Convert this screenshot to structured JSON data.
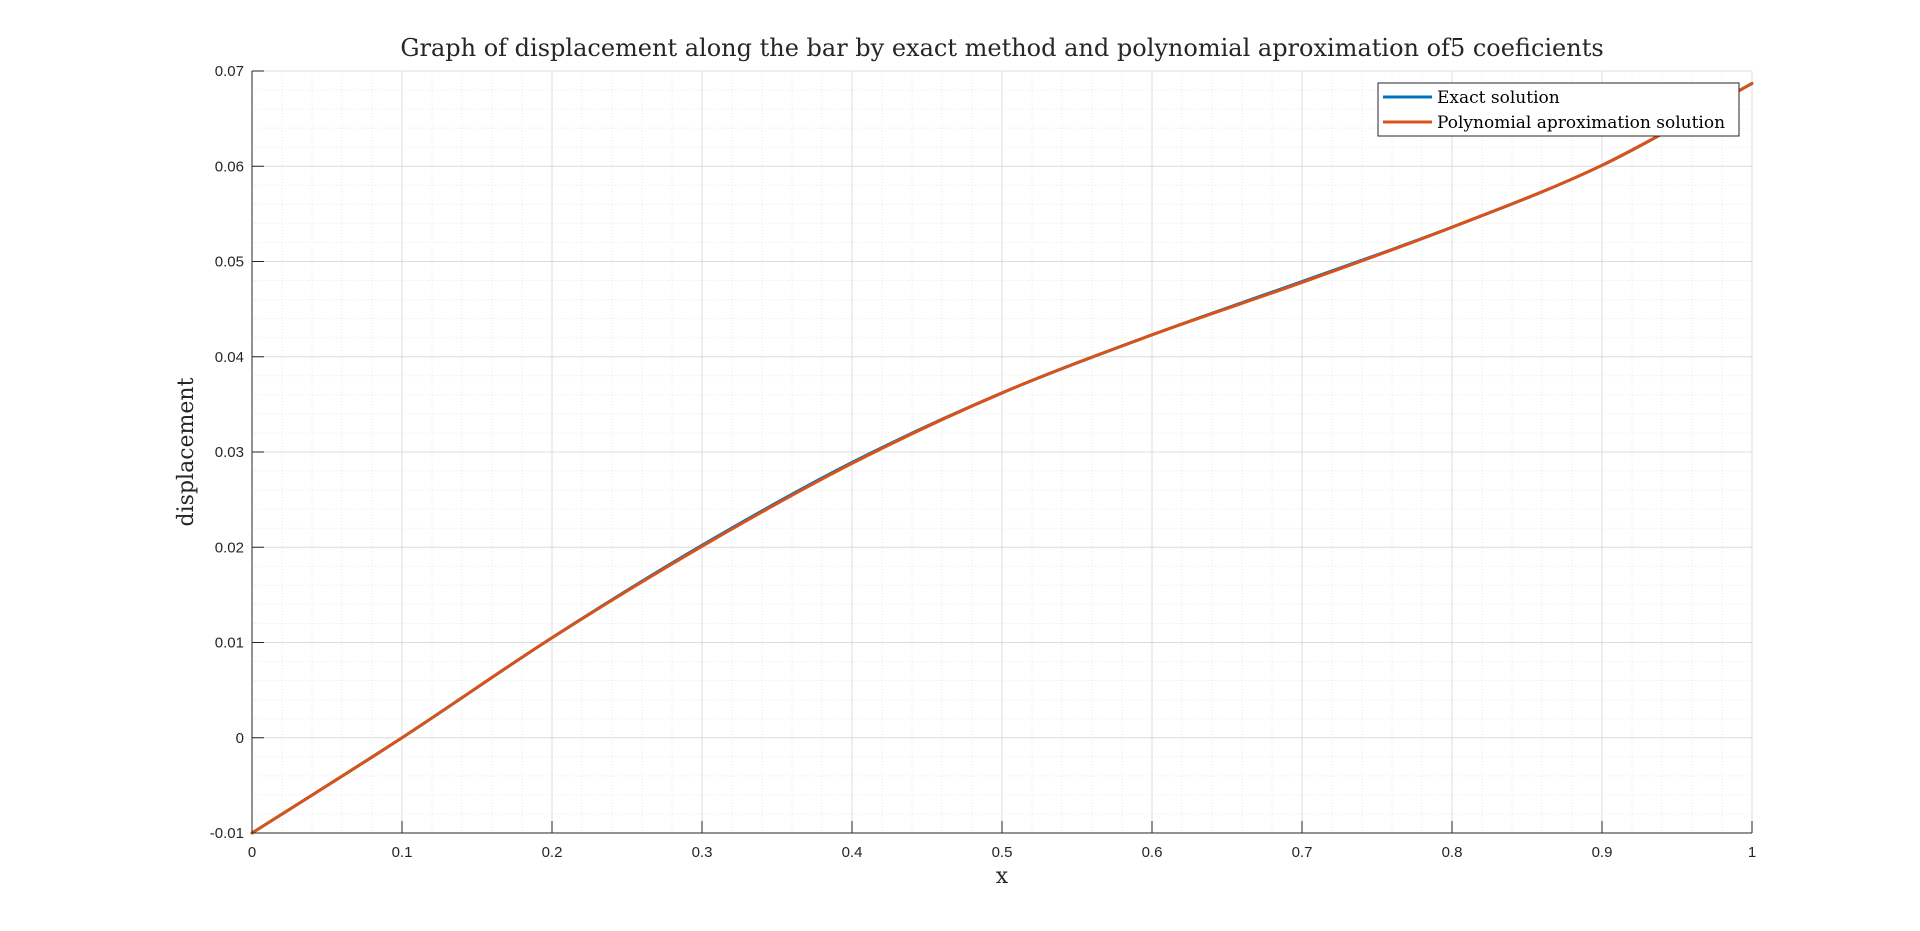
{
  "chart_data": {
    "type": "line",
    "title": "Graph of displacement along the bar by exact method and polynomial aproximation of5 coeficients",
    "xlabel": "x",
    "ylabel": "displacement",
    "xlim": [
      0,
      1
    ],
    "ylim": [
      -0.01,
      0.07
    ],
    "x_ticks": [
      0,
      0.1,
      0.2,
      0.3,
      0.4,
      0.5,
      0.6,
      0.7,
      0.8,
      0.9,
      1
    ],
    "x_tick_labels": [
      "0",
      "0.1",
      "0.2",
      "0.3",
      "0.4",
      "0.5",
      "0.6",
      "0.7",
      "0.8",
      "0.9",
      "1"
    ],
    "y_ticks": [
      -0.01,
      0,
      0.01,
      0.02,
      0.03,
      0.04,
      0.05,
      0.06,
      0.07
    ],
    "y_tick_labels": [
      "-0.01",
      "0",
      "0.01",
      "0.02",
      "0.03",
      "0.04",
      "0.05",
      "0.06",
      "0.07"
    ],
    "grid": true,
    "minor_grid": true,
    "legend_position": "top-right",
    "series": [
      {
        "name": "Exact solution",
        "color": "#0072BD",
        "x": [
          0,
          0.1,
          0.2,
          0.3,
          0.4,
          0.5,
          0.6,
          0.7,
          0.8,
          0.9,
          1.0
        ],
        "values": [
          -0.01,
          0.0,
          0.0105,
          0.0202,
          0.0289,
          0.0362,
          0.0423,
          0.0479,
          0.0536,
          0.0601,
          0.0687
        ]
      },
      {
        "name": "Polynomial aproximation solution",
        "color": "#D95319",
        "x": [
          0,
          0.1,
          0.2,
          0.3,
          0.4,
          0.5,
          0.6,
          0.7,
          0.8,
          0.9,
          1.0
        ],
        "values": [
          -0.01,
          0.0,
          0.0105,
          0.0201,
          0.0288,
          0.0362,
          0.0423,
          0.0478,
          0.0536,
          0.0601,
          0.0687
        ]
      }
    ]
  }
}
